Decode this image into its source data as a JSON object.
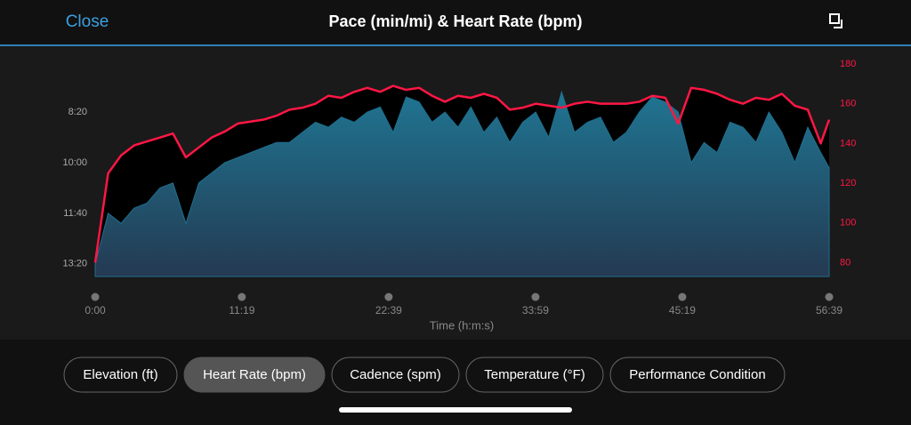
{
  "header": {
    "close": "Close"
  },
  "chart_data": {
    "type": "area-line",
    "title": "Pace (min/mi) & Heart Rate (bpm)",
    "x_label": "Time (h:m:s)",
    "x": [
      0,
      60,
      120,
      180,
      240,
      300,
      360,
      420,
      480,
      540,
      600,
      660,
      720,
      780,
      840,
      900,
      960,
      1020,
      1080,
      1140,
      1200,
      1260,
      1320,
      1380,
      1440,
      1500,
      1560,
      1620,
      1680,
      1740,
      1800,
      1860,
      1920,
      1980,
      2040,
      2100,
      2160,
      2220,
      2280,
      2340,
      2400,
      2460,
      2520,
      2580,
      2640,
      2700,
      2760,
      2820,
      2880,
      2940,
      3000,
      3060,
      3120,
      3180,
      3240,
      3300,
      3360,
      3399
    ],
    "xlim": [
      0,
      3399
    ],
    "xticks": [
      {
        "value": 0,
        "label": "0:00"
      },
      {
        "value": 679,
        "label": "11:19"
      },
      {
        "value": 1359,
        "label": "22:39"
      },
      {
        "value": 2039,
        "label": "33:59"
      },
      {
        "value": 2719,
        "label": "45:19"
      },
      {
        "value": 3399,
        "label": "56:39"
      }
    ],
    "ylim": [
      825,
      405
    ],
    "yticks": [
      {
        "value": 500,
        "label": "8:20"
      },
      {
        "value": 600,
        "label": "10:00"
      },
      {
        "value": 700,
        "label": "11:40"
      },
      {
        "value": 800,
        "label": "13:20"
      }
    ],
    "y2lim": [
      73,
      180
    ],
    "y2ticks": [
      80,
      100,
      120,
      140,
      160,
      180
    ],
    "series": [
      {
        "color": "#1f6f8f",
        "values": [
          800,
          700,
          720,
          690,
          680,
          650,
          640,
          720,
          640,
          620,
          600,
          590,
          580,
          570,
          560,
          560,
          540,
          520,
          530,
          510,
          520,
          500,
          490,
          540,
          470,
          480,
          520,
          500,
          530,
          490,
          540,
          510,
          560,
          520,
          500,
          550,
          460,
          540,
          520,
          510,
          560,
          540,
          500,
          470,
          480,
          500,
          600,
          560,
          580,
          520,
          530,
          560,
          500,
          540,
          600,
          530,
          580,
          610
        ]
      },
      {
        "color": "#ff1744",
        "axis": "y2",
        "values": [
          80,
          125,
          134,
          139,
          141,
          143,
          145,
          133,
          138,
          143,
          146,
          150,
          151,
          152,
          154,
          157,
          158,
          160,
          164,
          163,
          166,
          168,
          166,
          169,
          167,
          168,
          164,
          161,
          164,
          163,
          165,
          163,
          157,
          158,
          160,
          159,
          158,
          160,
          161,
          160,
          160,
          160,
          161,
          164,
          163,
          150,
          168,
          167,
          165,
          162,
          160,
          163,
          162,
          165,
          159,
          157,
          140,
          152
        ]
      }
    ]
  },
  "buttons": [
    "Elevation (ft)",
    "Heart Rate (bpm)",
    "Cadence (spm)",
    "Temperature (°F)",
    "Performance Condition"
  ],
  "selected_button": 1
}
